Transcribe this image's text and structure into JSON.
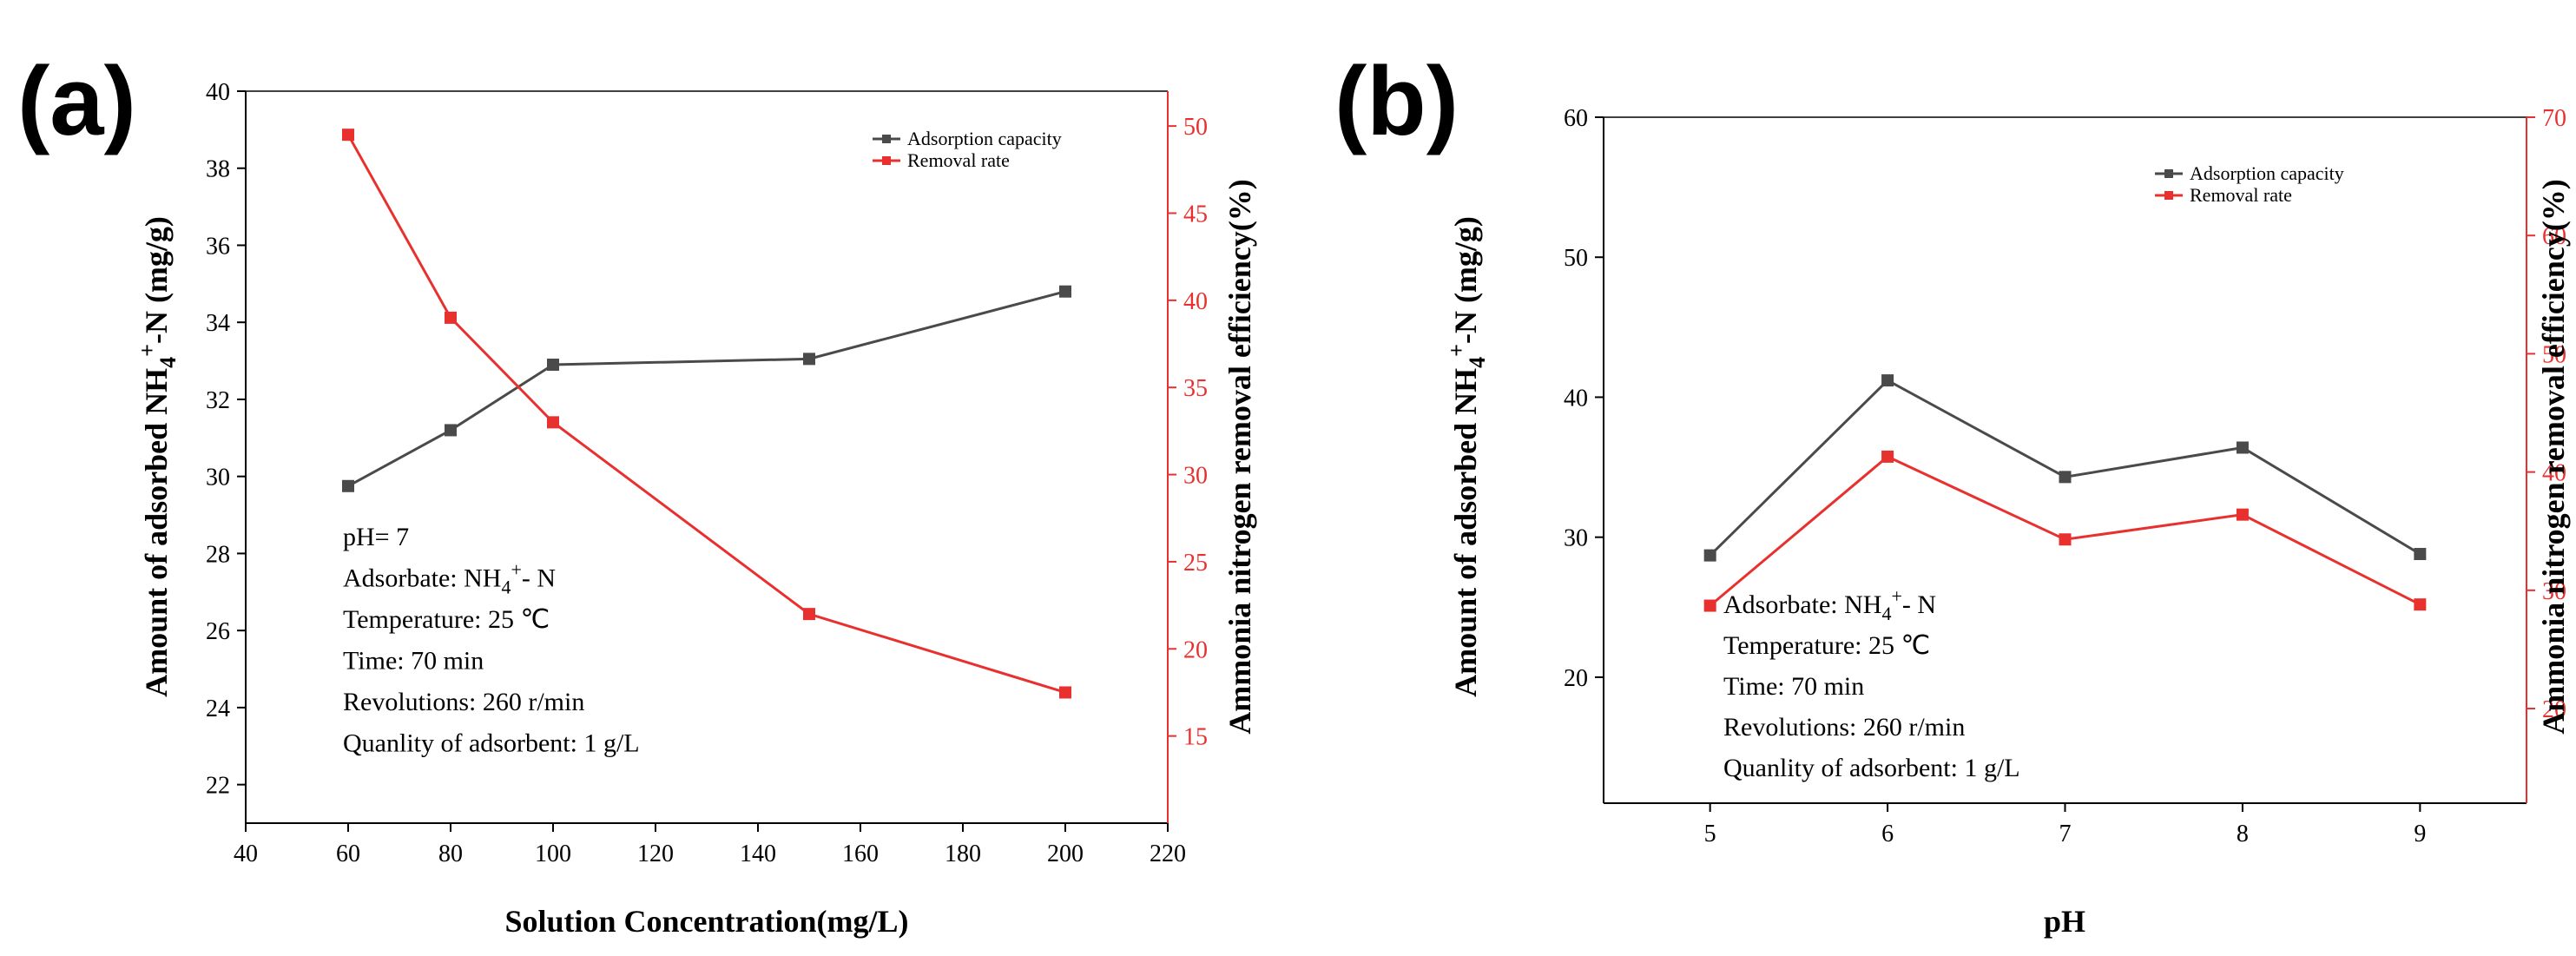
{
  "chart_data": [
    {
      "panel_label": "(a)",
      "type": "line",
      "xlabel": "Solution Concentration(mg/L)",
      "ylabel_main": "Amount of adsorbed NH",
      "ylabel_sub": "4",
      "ylabel_sup": "+",
      "ylabel_end": "-N (mg/g)",
      "y2label": "Ammonia nitrogen removal efficiency(%)",
      "xlim": [
        40,
        220
      ],
      "xticks": [
        "40",
        "60",
        "80",
        "100",
        "120",
        "140",
        "160",
        "180",
        "200",
        "220"
      ],
      "ylim": [
        21,
        40
      ],
      "yticks": [
        "22",
        "24",
        "26",
        "28",
        "30",
        "32",
        "34",
        "36",
        "38",
        "40"
      ],
      "y2lim": [
        10,
        52
      ],
      "y2ticks": [
        "15",
        "20",
        "25",
        "30",
        "35",
        "40",
        "45",
        "50"
      ],
      "series": [
        {
          "name": "Adsorption capacity",
          "axis": "left",
          "color": "#4a4a4a",
          "x": [
            60,
            80,
            100,
            150,
            200
          ],
          "values": [
            29.75,
            31.2,
            32.9,
            33.05,
            34.8
          ]
        },
        {
          "name": "Removal rate",
          "axis": "right",
          "color": "#e8312f",
          "x": [
            60,
            80,
            100,
            150,
            200
          ],
          "values": [
            49.5,
            39.0,
            33.0,
            22.0,
            17.5
          ]
        }
      ],
      "legend": [
        "Adsorption capacity",
        "Removal rate"
      ],
      "annotations": [
        {
          "main": "pH= 7"
        },
        {
          "main": "Adsorbate: NH",
          "sub": "4",
          "sup": "+",
          "end": "- N"
        },
        {
          "main": "Temperature: 25 ℃"
        },
        {
          "main": "Time: 70 min"
        },
        {
          "main": "Revolutions: 260 r/min"
        },
        {
          "main": "Quanlity of adsorbent: 1 g/L"
        }
      ]
    },
    {
      "panel_label": "(b)",
      "type": "line",
      "xlabel": "pH",
      "ylabel_main": "Amount of adsorbed NH",
      "ylabel_sub": "4",
      "ylabel_sup": "+",
      "ylabel_end": "-N (mg/g)",
      "y2label": "Ammonia nitrogen removal efficiency(%)",
      "xlim": [
        4.4,
        9.6
      ],
      "xticks": [
        "5",
        "6",
        "7",
        "8",
        "9"
      ],
      "ylim": [
        11,
        60
      ],
      "yticks": [
        "20",
        "30",
        "40",
        "50",
        "60"
      ],
      "y2lim": [
        12,
        70
      ],
      "y2ticks": [
        "20",
        "30",
        "40",
        "50",
        "60",
        "70"
      ],
      "series": [
        {
          "name": "Adsorption capacity",
          "axis": "left",
          "color": "#4a4a4a",
          "x": [
            5,
            6,
            7,
            8,
            9
          ],
          "values": [
            28.7,
            41.2,
            34.3,
            36.4,
            28.8
          ]
        },
        {
          "name": "Removal rate",
          "axis": "right",
          "color": "#e8312f",
          "x": [
            5,
            6,
            7,
            8,
            9
          ],
          "values": [
            28.7,
            41.3,
            34.3,
            36.4,
            28.8
          ]
        }
      ],
      "legend": [
        "Adsorption capacity",
        "Removal rate"
      ],
      "annotations": [
        {
          "main": "Adsorbate: NH",
          "sub": "4",
          "sup": "+",
          "end": "- N"
        },
        {
          "main": "Temperature: 25 ℃"
        },
        {
          "main": "Time: 70 min"
        },
        {
          "main": "Revolutions: 260 r/min"
        },
        {
          "main": "Quanlity of adsorbent: 1 g/L"
        }
      ]
    }
  ]
}
